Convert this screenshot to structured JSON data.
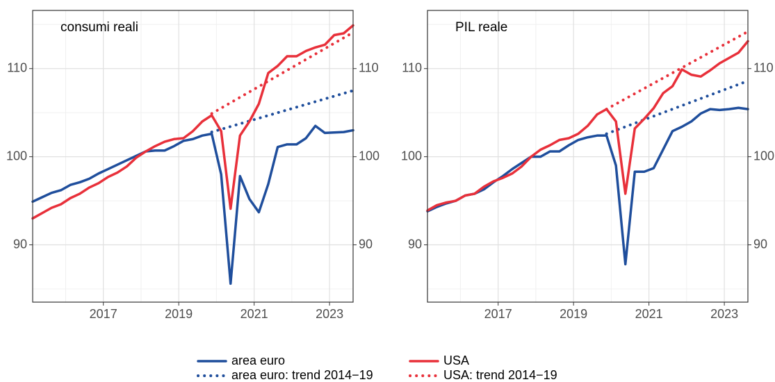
{
  "chart_data": [
    {
      "type": "line",
      "title": "consumi reali",
      "x": [
        2015.125,
        2015.375,
        2015.625,
        2015.875,
        2016.125,
        2016.375,
        2016.625,
        2016.875,
        2017.125,
        2017.375,
        2017.625,
        2017.875,
        2018.125,
        2018.375,
        2018.625,
        2018.875,
        2019.125,
        2019.375,
        2019.625,
        2019.875,
        2020.125,
        2020.375,
        2020.625,
        2020.875,
        2021.125,
        2021.375,
        2021.625,
        2021.875,
        2022.125,
        2022.375,
        2022.625,
        2022.875,
        2023.125,
        2023.375,
        2023.625
      ],
      "series": [
        {
          "name": "area euro",
          "color": "#1f4e9c",
          "style": "solid",
          "values": [
            94.9,
            95.4,
            95.9,
            96.2,
            96.8,
            97.1,
            97.5,
            98.1,
            98.6,
            99.1,
            99.6,
            100.1,
            100.6,
            100.7,
            100.7,
            101.2,
            101.8,
            102.0,
            102.4,
            102.6,
            98.0,
            85.6,
            97.8,
            95.2,
            93.7,
            96.9,
            101.1,
            101.4,
            101.4,
            102.1,
            103.5,
            102.7,
            102.75,
            102.8,
            103.0
          ]
        },
        {
          "name": "USA",
          "color": "#e8303a",
          "style": "solid",
          "values": [
            93.0,
            93.6,
            94.2,
            94.6,
            95.3,
            95.8,
            96.5,
            97.0,
            97.7,
            98.2,
            98.9,
            99.9,
            100.6,
            101.2,
            101.7,
            102.0,
            102.1,
            102.9,
            104.0,
            104.7,
            102.9,
            94.1,
            102.4,
            104.0,
            106.0,
            109.5,
            110.3,
            111.4,
            111.4,
            112.0,
            112.4,
            112.7,
            113.8,
            114.0,
            114.9
          ]
        },
        {
          "name": "area euro: trend 2014−19",
          "color": "#1f4e9c",
          "style": "dotted",
          "x": [
            2019.875,
            2023.625
          ],
          "values": [
            102.8,
            107.5
          ]
        },
        {
          "name": "USA: trend 2014−19",
          "color": "#e8303a",
          "style": "dotted",
          "x": [
            2019.875,
            2023.625
          ],
          "values": [
            104.9,
            114.1
          ]
        }
      ],
      "xlim": [
        2015.125,
        2023.625
      ],
      "xticks": [
        2017,
        2019,
        2021,
        2023
      ],
      "ylim": [
        83.5,
        116.6
      ],
      "yticks": [
        90,
        100,
        110
      ],
      "grid": true,
      "legend": "bottom"
    },
    {
      "type": "line",
      "title": "PIL reale",
      "x": [
        2015.125,
        2015.375,
        2015.625,
        2015.875,
        2016.125,
        2016.375,
        2016.625,
        2016.875,
        2017.125,
        2017.375,
        2017.625,
        2017.875,
        2018.125,
        2018.375,
        2018.625,
        2018.875,
        2019.125,
        2019.375,
        2019.625,
        2019.875,
        2020.125,
        2020.375,
        2020.625,
        2020.875,
        2021.125,
        2021.375,
        2021.625,
        2021.875,
        2022.125,
        2022.375,
        2022.625,
        2022.875,
        2023.125,
        2023.375,
        2023.625
      ],
      "series": [
        {
          "name": "area euro",
          "color": "#1f4e9c",
          "style": "solid",
          "values": [
            93.8,
            94.3,
            94.7,
            95.0,
            95.6,
            95.8,
            96.3,
            97.1,
            97.8,
            98.6,
            99.3,
            100.0,
            100.0,
            100.6,
            100.6,
            101.3,
            101.9,
            102.2,
            102.4,
            102.4,
            99.0,
            87.8,
            98.3,
            98.3,
            98.7,
            100.8,
            102.9,
            103.4,
            104.0,
            104.9,
            105.4,
            105.3,
            105.4,
            105.55,
            105.4
          ]
        },
        {
          "name": "USA",
          "color": "#e8303a",
          "style": "solid",
          "values": [
            93.9,
            94.5,
            94.8,
            95.0,
            95.6,
            95.8,
            96.6,
            97.2,
            97.6,
            98.1,
            98.9,
            100.0,
            100.8,
            101.3,
            101.9,
            102.1,
            102.6,
            103.5,
            104.8,
            105.4,
            104.0,
            95.8,
            103.2,
            104.3,
            105.5,
            107.2,
            108.0,
            109.9,
            109.3,
            109.1,
            109.8,
            110.6,
            111.2,
            111.8,
            113.1
          ]
        },
        {
          "name": "area euro: trend 2014−19",
          "color": "#1f4e9c",
          "style": "dotted",
          "x": [
            2019.875,
            2023.625
          ],
          "values": [
            102.6,
            108.6
          ]
        },
        {
          "name": "USA: trend 2014−19",
          "color": "#e8303a",
          "style": "dotted",
          "x": [
            2019.875,
            2023.625
          ],
          "values": [
            105.4,
            114.2
          ]
        }
      ],
      "xlim": [
        2015.125,
        2023.625
      ],
      "xticks": [
        2017,
        2019,
        2021,
        2023
      ],
      "ylim": [
        83.5,
        116.6
      ],
      "yticks": [
        90,
        100,
        110
      ],
      "grid": true
    }
  ]
}
